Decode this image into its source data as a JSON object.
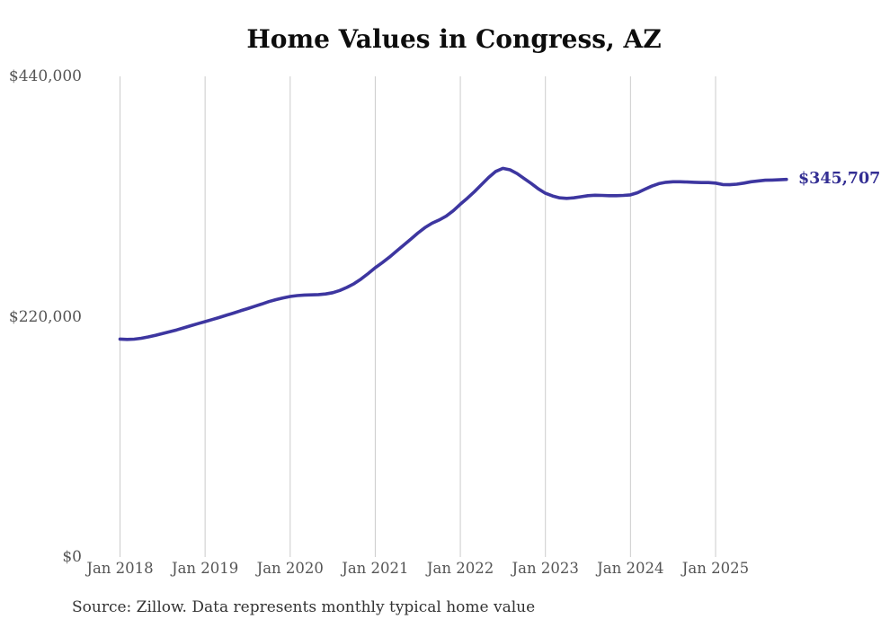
{
  "page": {
    "title": "Home Values in Congress, AZ",
    "source_note": "Source: Zillow. Data represents monthly typical home value",
    "end_value_label": "$345,707"
  },
  "colors": {
    "line": "#3d36a0",
    "end_label": "#332e93",
    "gridline": "#cccccc",
    "axis_text": "#555555",
    "title_text": "#0d0d0d",
    "source_text": "#333333",
    "background": "#ffffff"
  },
  "chart_data": {
    "type": "line",
    "title": "Home Values in Congress, AZ",
    "xlabel": "",
    "ylabel": "",
    "ylim": [
      0,
      440000
    ],
    "grid": "vertical-year-gridlines-only",
    "legend": "none",
    "y_ticks": [
      {
        "label": "$440,000",
        "value": 440000
      },
      {
        "label": "$220,000",
        "value": 220000
      },
      {
        "label": "$0",
        "value": 0
      }
    ],
    "x_ticks": [
      "Jan 2018",
      "Jan 2019",
      "Jan 2020",
      "Jan 2021",
      "Jan 2022",
      "Jan 2023",
      "Jan 2024",
      "Jan 2025"
    ],
    "series": [
      {
        "name": "Monthly typical home value",
        "frequency": "monthly",
        "start": "Jan 2018",
        "end": "Nov 2025",
        "values": [
          199500,
          199200,
          199400,
          200300,
          201500,
          203000,
          204600,
          206200,
          207900,
          209800,
          211800,
          213700,
          215500,
          217400,
          219300,
          221300,
          223300,
          225400,
          227400,
          229500,
          231600,
          233800,
          235600,
          237200,
          238500,
          239300,
          239800,
          240000,
          240200,
          240800,
          242000,
          244000,
          246800,
          250200,
          254500,
          259500,
          264800,
          269500,
          274500,
          280000,
          285500,
          291000,
          296500,
          301500,
          305500,
          308500,
          312000,
          317000,
          323000,
          328500,
          334500,
          341000,
          347500,
          353000,
          355800,
          354500,
          351000,
          346500,
          342000,
          337000,
          333000,
          330500,
          328800,
          328300,
          328800,
          329800,
          330800,
          331200,
          331000,
          330800,
          330800,
          331000,
          331500,
          333500,
          336500,
          339500,
          341800,
          343000,
          343500,
          343500,
          343300,
          343000,
          342800,
          342800,
          342300,
          341000,
          340800,
          341300,
          342300,
          343500,
          344300,
          344900,
          345100,
          345300,
          345707
        ]
      }
    ],
    "last_point": {
      "label": "$345,707",
      "value": 345707
    }
  }
}
